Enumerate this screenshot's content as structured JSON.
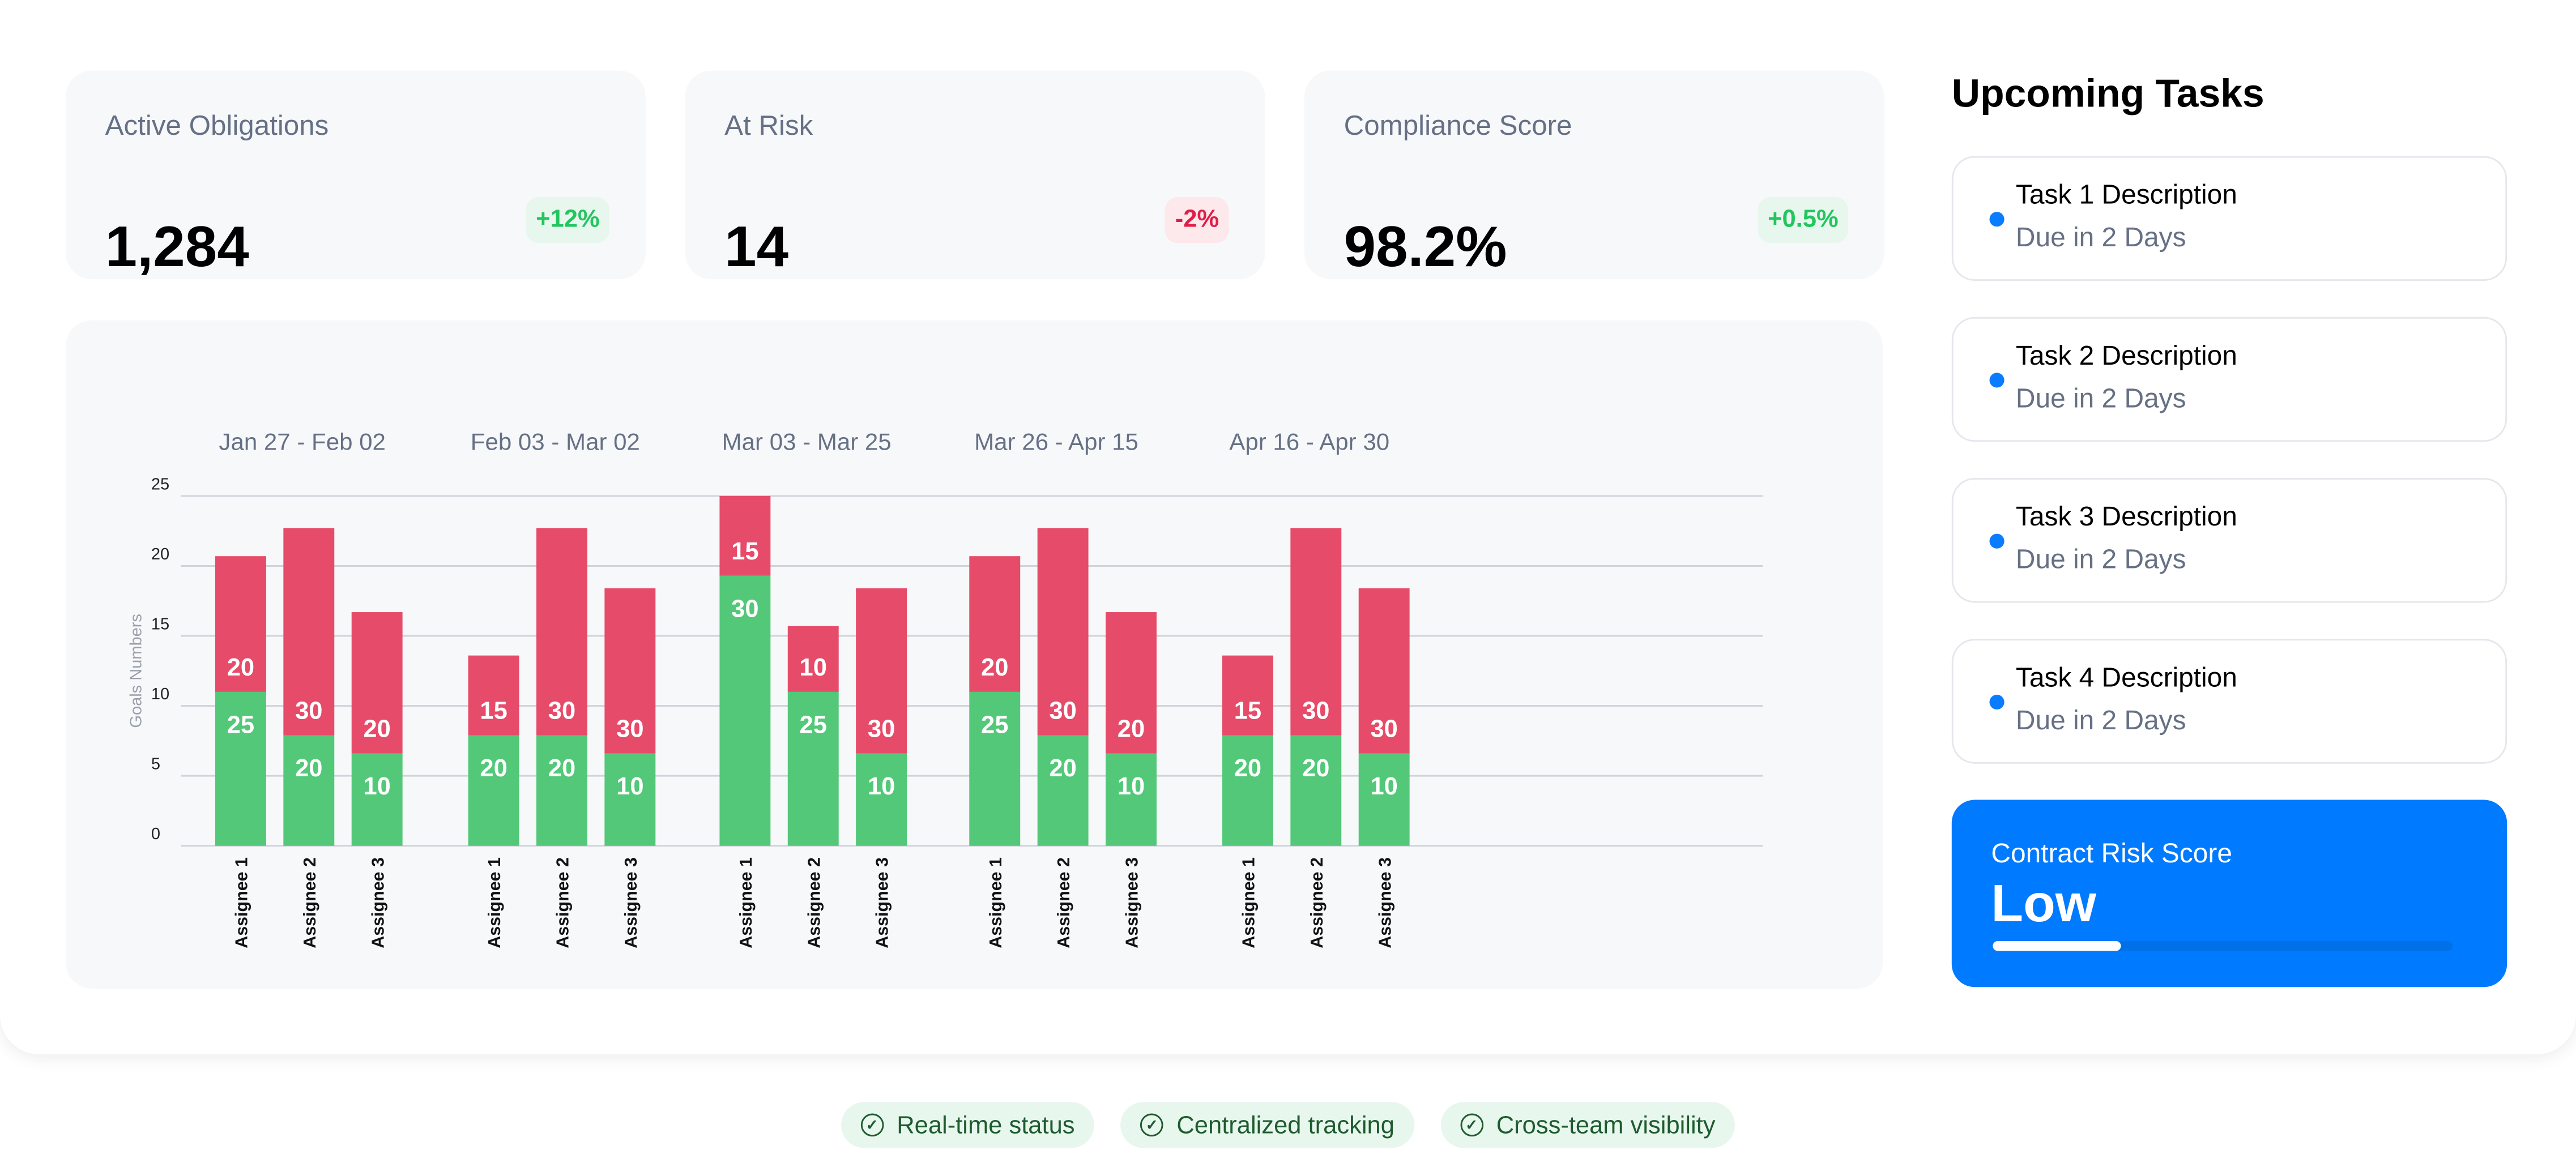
{
  "stats": [
    {
      "label": "Active Obligations",
      "value": "1,284",
      "change": "+12%",
      "trend": "up"
    },
    {
      "label": "At Risk",
      "value": "14",
      "change": "-2%",
      "trend": "down"
    },
    {
      "label": "Compliance Score",
      "value": "98.2%",
      "change": "+0.5%",
      "trend": "up"
    }
  ],
  "colors": {
    "up_text": "#22c55e",
    "up_bg": "#e8f7ee",
    "down_text": "#e11d48",
    "down_bg": "#fde8ec",
    "accent": "#007aff",
    "green_bar": "#52c878",
    "red_bar": "#e64b6a"
  },
  "tasks": {
    "title": "Upcoming Tasks",
    "items": [
      {
        "title": "Task 1 Description",
        "due": "Due in 2 Days"
      },
      {
        "title": "Task 2 Description",
        "due": "Due in 2 Days"
      },
      {
        "title": "Task 3 Description",
        "due": "Due in 2 Days"
      },
      {
        "title": "Task 4 Description",
        "due": "Due in 2 Days"
      }
    ]
  },
  "risk": {
    "label": "Contract Risk Score",
    "value": "Low",
    "progress": 0.28
  },
  "features": [
    "Real-time status",
    "Centralized tracking",
    "Cross-team visibility"
  ],
  "chart_data": {
    "type": "bar",
    "stacked": true,
    "ylabel": "Goals Numbers",
    "ylim": [
      0,
      25
    ],
    "yticks": [
      "0",
      "5",
      "10",
      "15",
      "20",
      "25"
    ],
    "grid": true,
    "groups": [
      {
        "label": "Jan 27 - Feb 02",
        "bars": [
          {
            "name": "Assignee 1",
            "green": 11,
            "red": 9.7,
            "green_label": "25",
            "red_label": "20"
          },
          {
            "name": "Assignee 2",
            "green": 7.9,
            "red": 14.8,
            "green_label": "20",
            "red_label": "30"
          },
          {
            "name": "Assignee 3",
            "green": 6.6,
            "red": 10.1,
            "green_label": "10",
            "red_label": "20"
          }
        ]
      },
      {
        "label": "Feb 03 - Mar 02",
        "bars": [
          {
            "name": "Assignee 1",
            "green": 7.9,
            "red": 5.7,
            "green_label": "20",
            "red_label": "15"
          },
          {
            "name": "Assignee 2",
            "green": 7.9,
            "red": 14.8,
            "green_label": "20",
            "red_label": "30"
          },
          {
            "name": "Assignee 3",
            "green": 6.6,
            "red": 11.8,
            "green_label": "10",
            "red_label": "30"
          }
        ]
      },
      {
        "label": "Mar 03 - Mar 25",
        "bars": [
          {
            "name": "Assignee 1",
            "green": 19.3,
            "red": 5.7,
            "green_label": "30",
            "red_label": "15"
          },
          {
            "name": "Assignee 2",
            "green": 11,
            "red": 4.7,
            "green_label": "25",
            "red_label": "10"
          },
          {
            "name": "Assignee 3",
            "green": 6.6,
            "red": 11.8,
            "green_label": "10",
            "red_label": "30"
          }
        ]
      },
      {
        "label": "Mar 26 - Apr 15",
        "bars": [
          {
            "name": "Assignee 1",
            "green": 11,
            "red": 9.7,
            "green_label": "25",
            "red_label": "20"
          },
          {
            "name": "Assignee 2",
            "green": 7.9,
            "red": 14.8,
            "green_label": "20",
            "red_label": "30"
          },
          {
            "name": "Assignee 3",
            "green": 6.6,
            "red": 10.1,
            "green_label": "10",
            "red_label": "20"
          }
        ]
      },
      {
        "label": "Apr 16 - Apr 30",
        "bars": [
          {
            "name": "Assignee 1",
            "green": 7.9,
            "red": 5.7,
            "green_label": "20",
            "red_label": "15"
          },
          {
            "name": "Assignee 2",
            "green": 7.9,
            "red": 14.8,
            "green_label": "20",
            "red_label": "30"
          },
          {
            "name": "Assignee 3",
            "green": 6.6,
            "red": 11.8,
            "green_label": "10",
            "red_label": "30"
          }
        ]
      }
    ]
  }
}
